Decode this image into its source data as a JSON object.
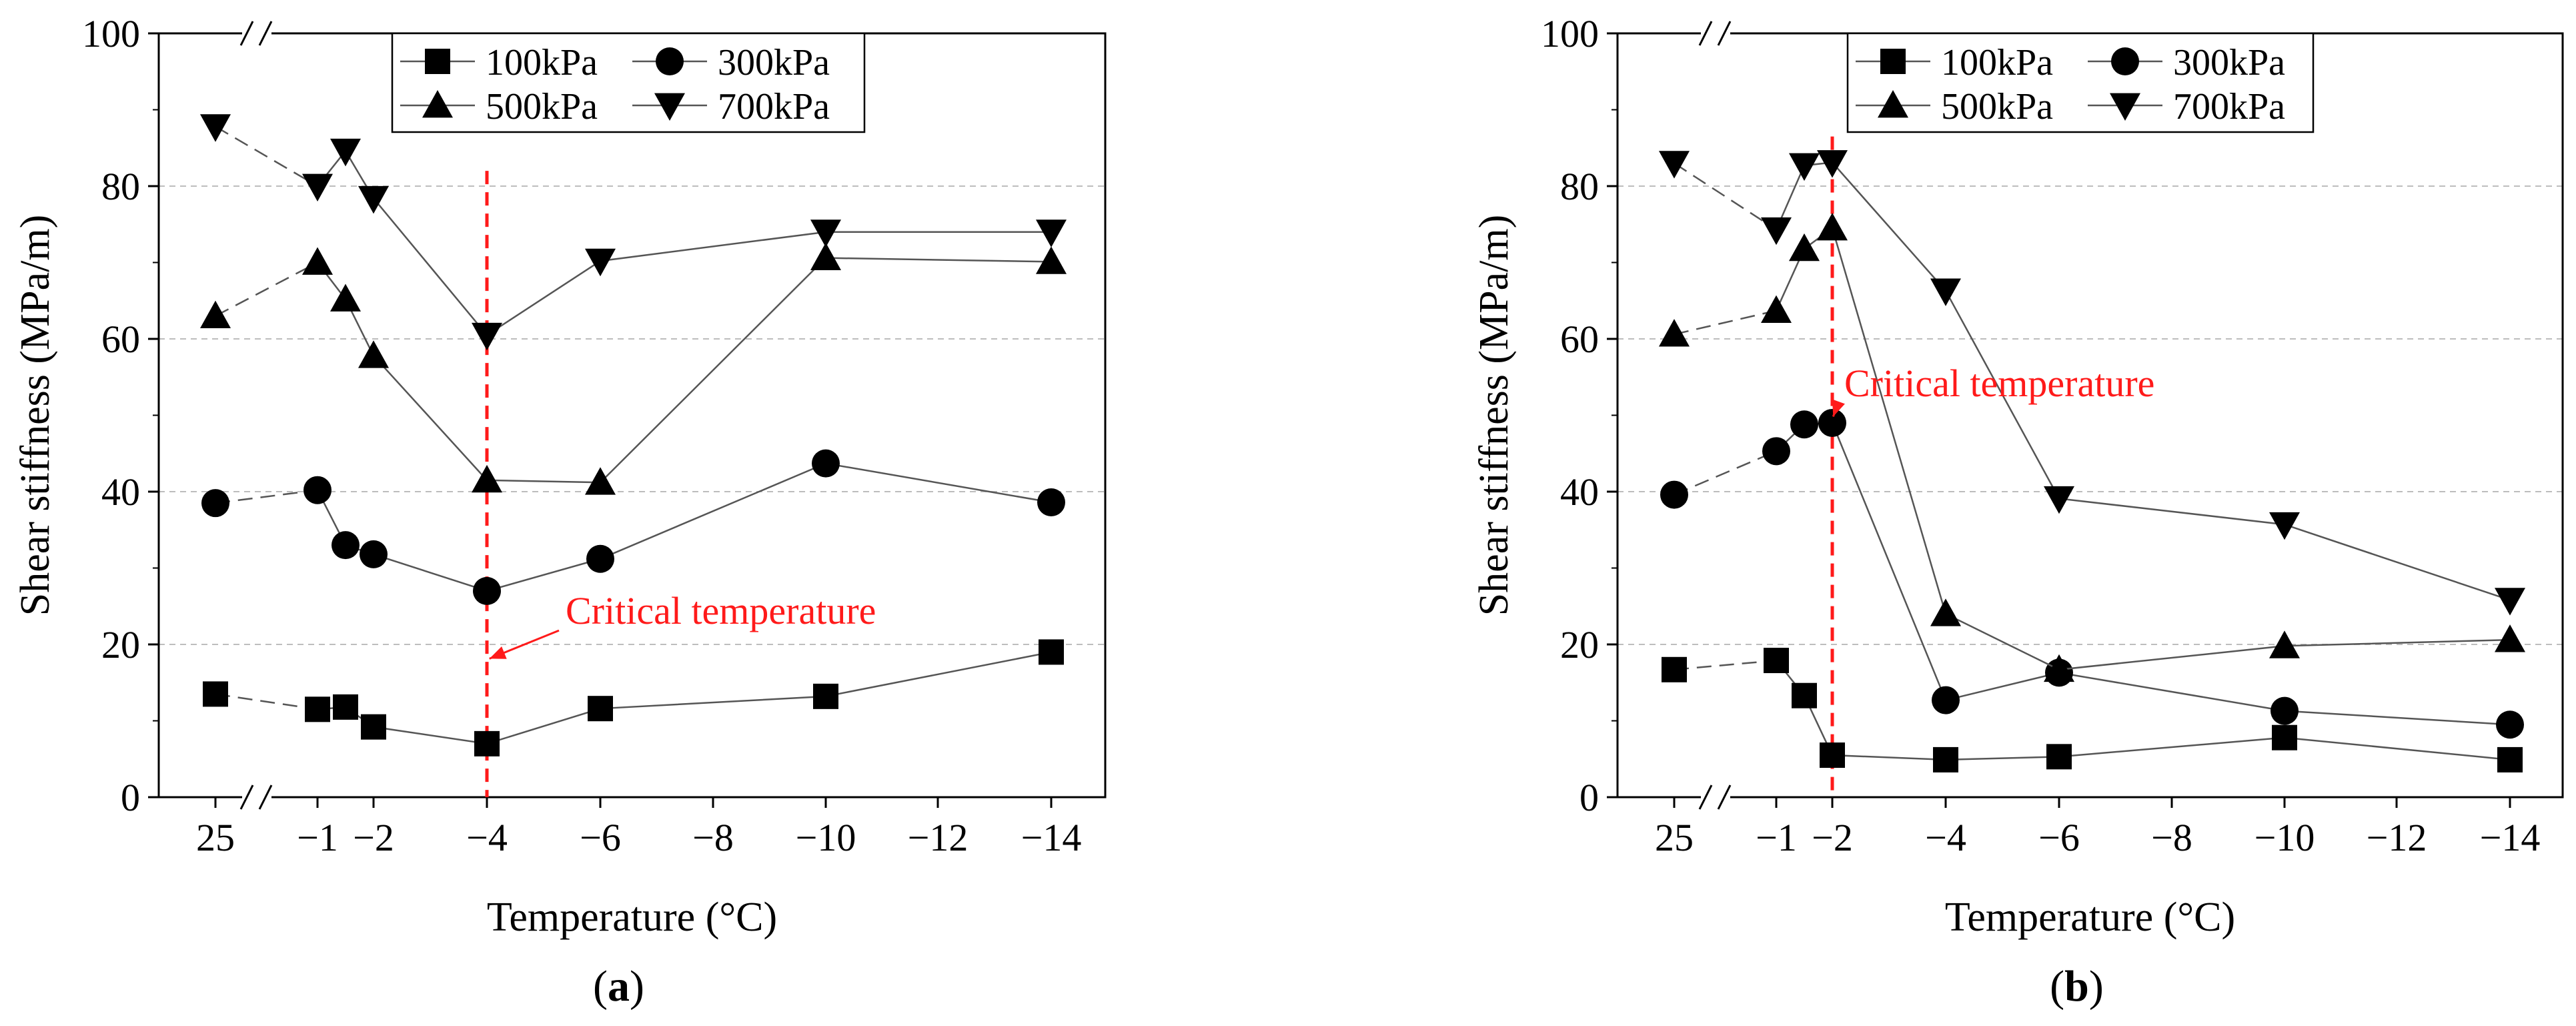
{
  "chart_data": [
    {
      "type": "line",
      "panel_label": "(a)",
      "xlabel": "Temperature (°C)",
      "ylabel": "Shear stiffness (MPa/m)",
      "ylim": [
        0,
        100
      ],
      "yticks": [
        0,
        20,
        40,
        60,
        80,
        100
      ],
      "xticks": [
        "25",
        "−1",
        "−2",
        "−4",
        "−6",
        "−8",
        "−10",
        "−12",
        "−14"
      ],
      "x_axis_break": true,
      "y_axis_break": true,
      "gridlines": [
        20,
        40,
        60,
        80
      ],
      "legend_position": "top-center",
      "series": [
        {
          "name": "100kPa",
          "marker": "square",
          "x": [
            25,
            -1,
            -1.5,
            -2,
            -4,
            -6,
            -10,
            -14
          ],
          "values": [
            13.5,
            11.5,
            11.8,
            9.2,
            7.0,
            11.6,
            13.2,
            19.0
          ]
        },
        {
          "name": "300kPa",
          "marker": "circle",
          "x": [
            25,
            -1,
            -1.5,
            -2,
            -4,
            -6,
            -10,
            -14
          ],
          "values": [
            38.5,
            40.2,
            33.0,
            31.8,
            27.0,
            31.2,
            43.7,
            38.6
          ]
        },
        {
          "name": "500kPa",
          "marker": "triangle-up",
          "x": [
            25,
            -1,
            -1.5,
            -2,
            -4,
            -6,
            -10,
            -14
          ],
          "values": [
            63.0,
            70.0,
            65.2,
            57.8,
            41.5,
            41.2,
            70.6,
            70.1
          ]
        },
        {
          "name": "700kPa",
          "marker": "triangle-down",
          "x": [
            25,
            -1,
            -1.5,
            -2,
            -4,
            -6,
            -10,
            -14
          ],
          "values": [
            87.8,
            80.0,
            84.6,
            78.4,
            60.5,
            70.2,
            74.0,
            74.0
          ]
        }
      ],
      "critical_line_x": -4,
      "annotation": {
        "text": "Critical temperature",
        "arrow_to": [
          -4,
          18
        ],
        "text_at": [
          -4.7,
          22.7
        ]
      }
    },
    {
      "type": "line",
      "panel_label": "(b)",
      "xlabel": "Temperature (°C)",
      "ylabel": "Shear stiffness (MPa/m)",
      "ylim": [
        0,
        100
      ],
      "yticks": [
        0,
        20,
        40,
        60,
        80,
        100
      ],
      "xticks": [
        "25",
        "−1",
        "−2",
        "−4",
        "−6",
        "−8",
        "−10",
        "−12",
        "−14"
      ],
      "x_axis_break": true,
      "y_axis_break": true,
      "gridlines": [
        20,
        40,
        60,
        80
      ],
      "legend_position": "top-right",
      "series": [
        {
          "name": "100kPa",
          "marker": "square",
          "x": [
            25,
            -1,
            -1.5,
            -2,
            -4,
            -6,
            -10,
            -14
          ],
          "values": [
            16.7,
            17.9,
            13.3,
            5.5,
            4.9,
            5.3,
            7.8,
            4.9
          ]
        },
        {
          "name": "300kPa",
          "marker": "circle",
          "x": [
            25,
            -1,
            -1.5,
            -2,
            -4,
            -6,
            -10,
            -14
          ],
          "values": [
            39.6,
            45.3,
            48.8,
            49.0,
            12.7,
            16.3,
            11.3,
            9.5
          ]
        },
        {
          "name": "500kPa",
          "marker": "triangle-up",
          "x": [
            25,
            -1,
            -1.5,
            -2,
            -4,
            -6,
            -10,
            -14
          ],
          "values": [
            60.6,
            63.7,
            71.8,
            74.5,
            24.0,
            16.7,
            19.8,
            20.6
          ]
        },
        {
          "name": "700kPa",
          "marker": "triangle-down",
          "x": [
            25,
            -1,
            -1.5,
            -2,
            -4,
            -6,
            -10,
            -14
          ],
          "values": [
            83.0,
            74.3,
            82.7,
            83.1,
            66.3,
            39.1,
            35.7,
            25.8
          ]
        }
      ],
      "critical_line_x": -2,
      "annotation": {
        "text": "Critical temperature",
        "arrow_to": [
          -2,
          49.5
        ],
        "text_at": [
          -3.2,
          52.5
        ]
      }
    }
  ]
}
